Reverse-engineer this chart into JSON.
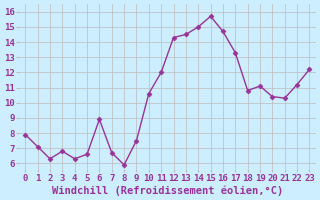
{
  "x": [
    0,
    1,
    2,
    3,
    4,
    5,
    6,
    7,
    8,
    9,
    10,
    11,
    12,
    13,
    14,
    15,
    16,
    17,
    18,
    19,
    20,
    21,
    22,
    23
  ],
  "y": [
    7.9,
    7.1,
    6.3,
    6.8,
    6.3,
    6.6,
    8.9,
    6.7,
    5.9,
    7.5,
    10.6,
    12.0,
    14.3,
    14.5,
    15.0,
    15.7,
    14.7,
    13.3,
    10.8,
    11.1,
    10.4,
    10.3,
    11.2,
    12.2
  ],
  "line_color": "#993399",
  "marker": "D",
  "marker_size": 2.5,
  "linewidth": 1.0,
  "bg_color": "#cceeff",
  "grid_color": "#bbbbbb",
  "xlabel": "Windchill (Refroidissement éolien,°C)",
  "xlabel_fontsize": 7.5,
  "ylabel_ticks": [
    6,
    7,
    8,
    9,
    10,
    11,
    12,
    13,
    14,
    15,
    16
  ],
  "xtick_labels": [
    "0",
    "1",
    "2",
    "3",
    "4",
    "5",
    "6",
    "7",
    "8",
    "9",
    "10",
    "11",
    "12",
    "13",
    "14",
    "15",
    "16",
    "17",
    "18",
    "19",
    "20",
    "21",
    "22",
    "23"
  ],
  "ylim": [
    5.6,
    16.5
  ],
  "xlim": [
    -0.5,
    23.5
  ],
  "tick_fontsize": 6.5,
  "label_color": "#993399"
}
